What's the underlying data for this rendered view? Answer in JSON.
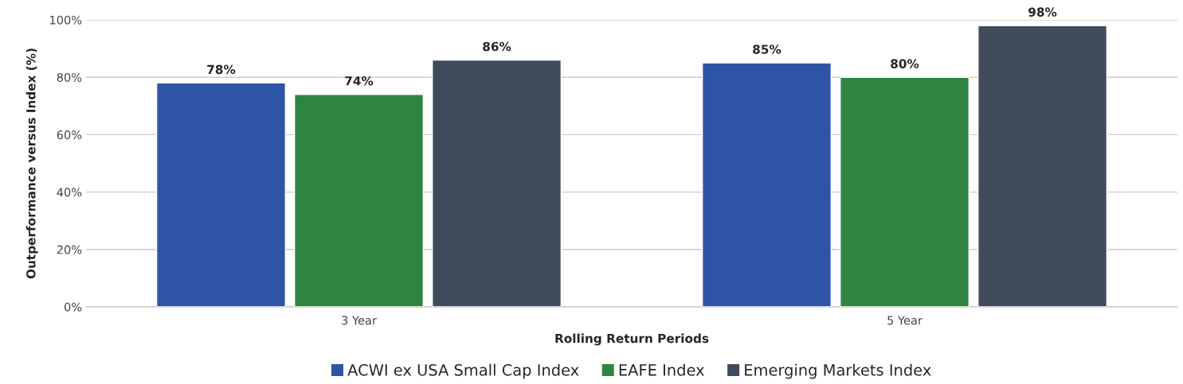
{
  "chart_data": {
    "type": "bar",
    "xlabel": "Rolling Return Periods",
    "ylabel": "Outperformance versus Index (%)",
    "categories": [
      "3 Year",
      "5 Year"
    ],
    "series": [
      {
        "name": "ACWI ex USA Small Cap Index",
        "color": "#2e55a5",
        "values": [
          78,
          85
        ],
        "value_labels": [
          "78%",
          "85%"
        ]
      },
      {
        "name": "EAFE Index",
        "color": "#2e8540",
        "values": [
          74,
          80
        ],
        "value_labels": [
          "74%",
          "80%"
        ]
      },
      {
        "name": "Emerging Markets Index",
        "color": "#404c5b",
        "values": [
          86,
          98
        ],
        "value_labels": [
          "86%",
          "98%"
        ]
      }
    ],
    "ylim": [
      0,
      100
    ],
    "yticks": [
      {
        "value": 0,
        "label": "0%"
      },
      {
        "value": 20,
        "label": "20%"
      },
      {
        "value": 40,
        "label": "40%"
      },
      {
        "value": 60,
        "label": "60%"
      },
      {
        "value": 80,
        "label": "80%"
      },
      {
        "value": 100,
        "label": "100%"
      }
    ],
    "grid": "y",
    "legend": "bottom"
  }
}
